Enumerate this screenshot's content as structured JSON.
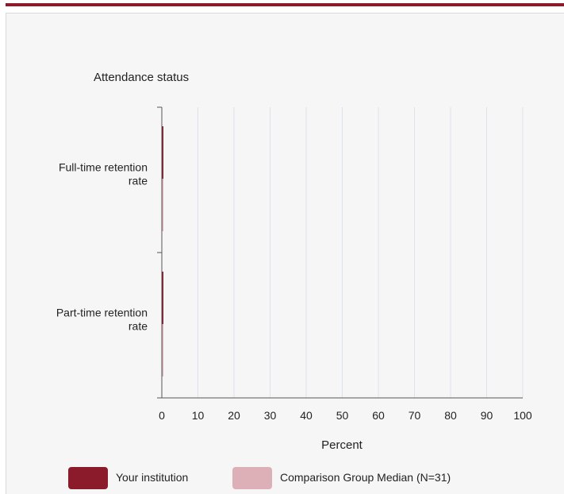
{
  "chart_data": {
    "type": "bar",
    "orientation": "horizontal",
    "title": "Attendance status",
    "xlabel": "Percent",
    "ylabel": "",
    "categories": [
      [
        "Full-time retention",
        "rate"
      ],
      [
        "Part-time retention",
        "rate"
      ]
    ],
    "xlim": [
      0,
      100
    ],
    "x_ticks": [
      "0",
      "10",
      "20",
      "30",
      "40",
      "50",
      "60",
      "70",
      "80",
      "90",
      "100"
    ],
    "grid": true,
    "series": [
      {
        "name": "Your institution",
        "color": "#8b1a2b",
        "values": [
          0,
          0
        ]
      },
      {
        "name": "Comparison Group Median (N=31)",
        "color": "#dcb0b6",
        "values": [
          0,
          0
        ]
      }
    ],
    "legend": "bottom"
  }
}
